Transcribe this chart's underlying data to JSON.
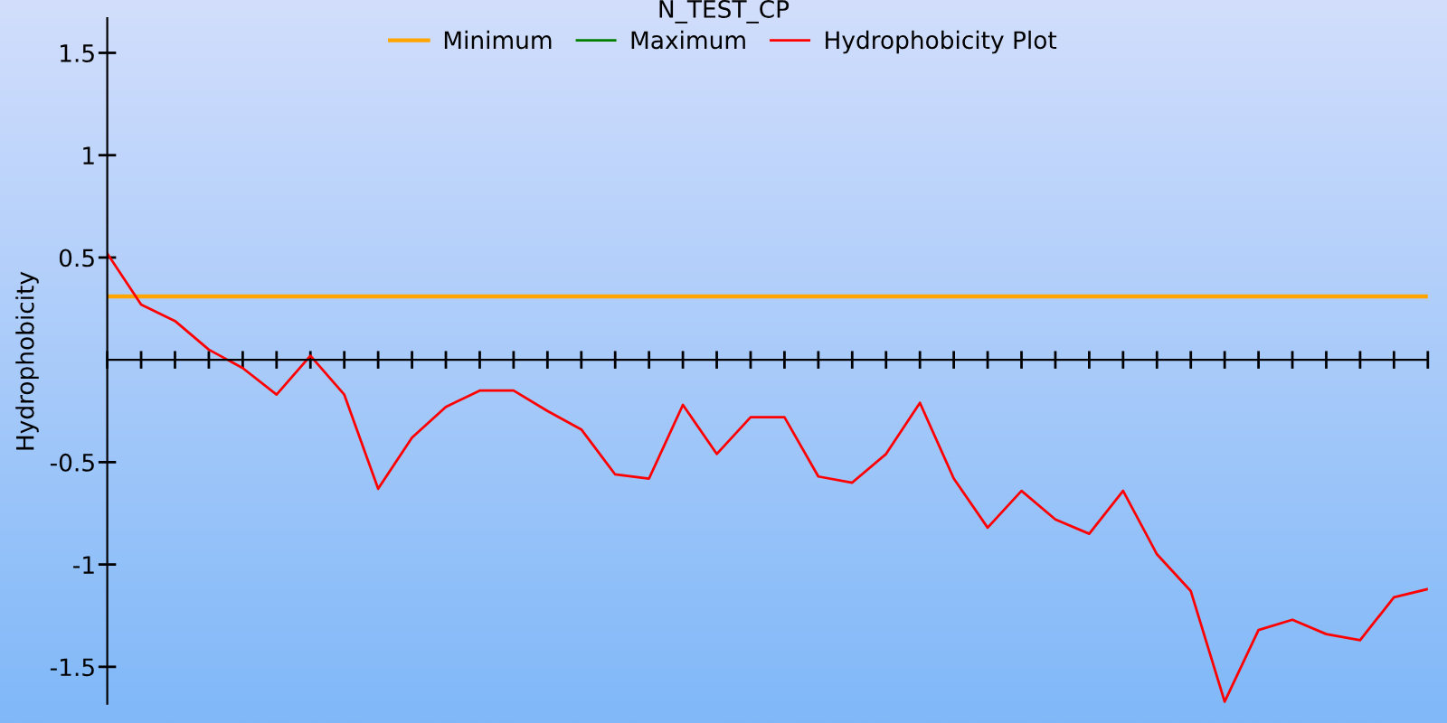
{
  "chart_data": {
    "type": "line",
    "title": "N_TEST_CP",
    "ylabel": "Hydrophobicity",
    "categories": [
      null,
      null,
      null,
      null,
      null,
      null,
      null,
      null,
      null,
      null,
      null,
      null,
      null,
      null,
      null,
      null,
      null,
      null,
      null,
      null,
      null,
      null,
      null,
      null,
      null,
      null,
      null,
      null,
      null,
      null,
      null,
      null,
      null,
      null,
      null,
      null,
      null,
      null,
      null,
      null
    ],
    "series": [
      {
        "name": "Minimum",
        "color": "#ffa500",
        "values": [
          0.31,
          0.31,
          0.31,
          0.31,
          0.31,
          0.31,
          0.31,
          0.31,
          0.31,
          0.31,
          0.31,
          0.31,
          0.31,
          0.31,
          0.31,
          0.31,
          0.31,
          0.31,
          0.31,
          0.31,
          0.31,
          0.31,
          0.31,
          0.31,
          0.31,
          0.31,
          0.31,
          0.31,
          0.31,
          0.31,
          0.31,
          0.31,
          0.31,
          0.31,
          0.31,
          0.31,
          0.31,
          0.31,
          0.31,
          0.31
        ]
      },
      {
        "name": "Maximum",
        "color": "#008000",
        "values": [
          null,
          null,
          null,
          null,
          null,
          null,
          null,
          null,
          null,
          null,
          null,
          null,
          null,
          null,
          null,
          null,
          null,
          null,
          null,
          null,
          null,
          null,
          null,
          null,
          null,
          null,
          null,
          null,
          null,
          null,
          null,
          null,
          null,
          null,
          null,
          null,
          null,
          null,
          null,
          null
        ]
      },
      {
        "name": "Hydrophobicity Plot",
        "color": "#ff0000",
        "values": [
          0.52,
          0.27,
          0.19,
          0.05,
          -0.04,
          -0.17,
          0.02,
          -0.17,
          -0.63,
          -0.38,
          -0.23,
          -0.15,
          -0.15,
          -0.25,
          -0.34,
          -0.56,
          -0.58,
          -0.22,
          -0.46,
          -0.28,
          -0.28,
          -0.57,
          -0.6,
          -0.46,
          -0.21,
          -0.58,
          -0.82,
          -0.64,
          -0.78,
          -0.85,
          -0.64,
          -0.95,
          -1.13,
          -1.67,
          -1.32,
          -1.27,
          -1.34,
          -1.37,
          -1.16,
          -1.12
        ]
      }
    ],
    "ylim": [
      -1.68,
      1.67
    ],
    "yticks": [
      -1.5,
      -1,
      -0.5,
      0.5,
      1,
      1.5
    ],
    "tick_labels": "y",
    "legend": "top",
    "grid": false
  }
}
